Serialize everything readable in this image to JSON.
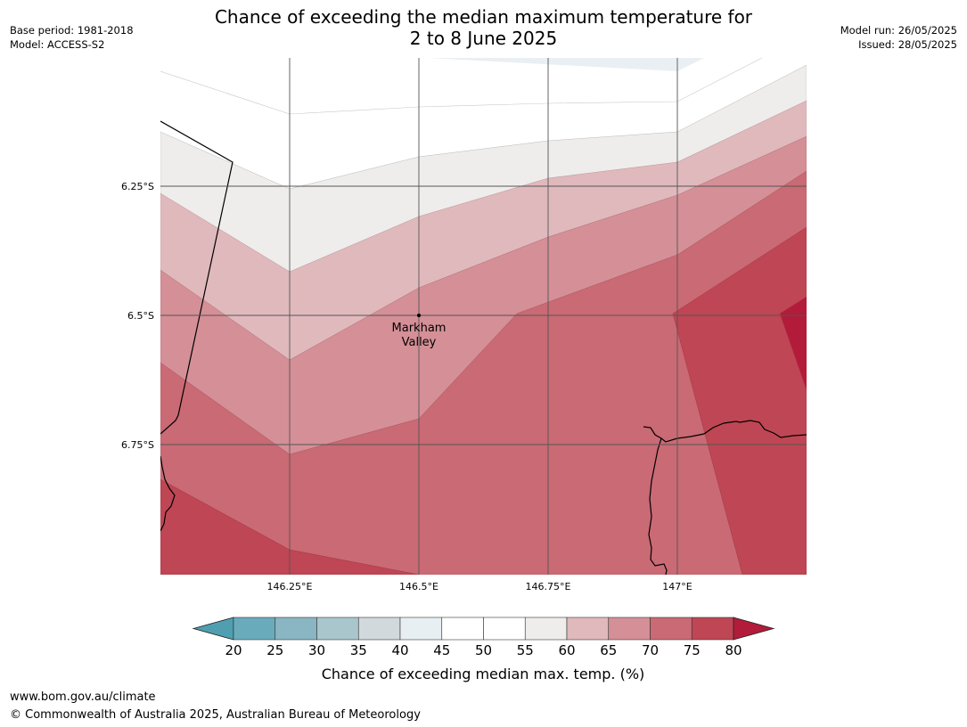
{
  "title_line1": "Chance of exceeding the median maximum temperature for",
  "title_line2": "2 to 8 June 2025",
  "meta_left": {
    "base_period": "Base period: 1981-2018",
    "model": "Model: ACCESS-S2"
  },
  "meta_right": {
    "model_run": "Model run: 26/05/2025",
    "issued": "Issued: 28/05/2025"
  },
  "map": {
    "lat_labels": [
      "6.25°S",
      "6.5°S",
      "6.75°S"
    ],
    "lon_labels": [
      "146.25°E",
      "146.5°E",
      "146.75°E",
      "147°E"
    ],
    "place_label_line1": "Markham",
    "place_label_line2": "Valley"
  },
  "colorbar": {
    "label": "Chance of exceeding median max. temp. (%)",
    "ticks": [
      "20",
      "25",
      "30",
      "35",
      "40",
      "45",
      "50",
      "55",
      "60",
      "65",
      "70",
      "75",
      "80"
    ],
    "colors": {
      "under": "#4f9fb0",
      "bins": [
        "#6aabbb",
        "#8ab5c2",
        "#a9c6cc",
        "#d2d9dc",
        "#e8eff2",
        "#ffffff",
        "#ffffff",
        "#eeedeb",
        "#e0b9bd",
        "#d48f97",
        "#c96a74",
        "#bf4654"
      ],
      "over": "#b21c3a"
    }
  },
  "footer": {
    "url": "www.bom.gov.au/climate",
    "copyright": "© Commonwealth of Australia 2025, Australian Bureau of Meteorology"
  }
}
